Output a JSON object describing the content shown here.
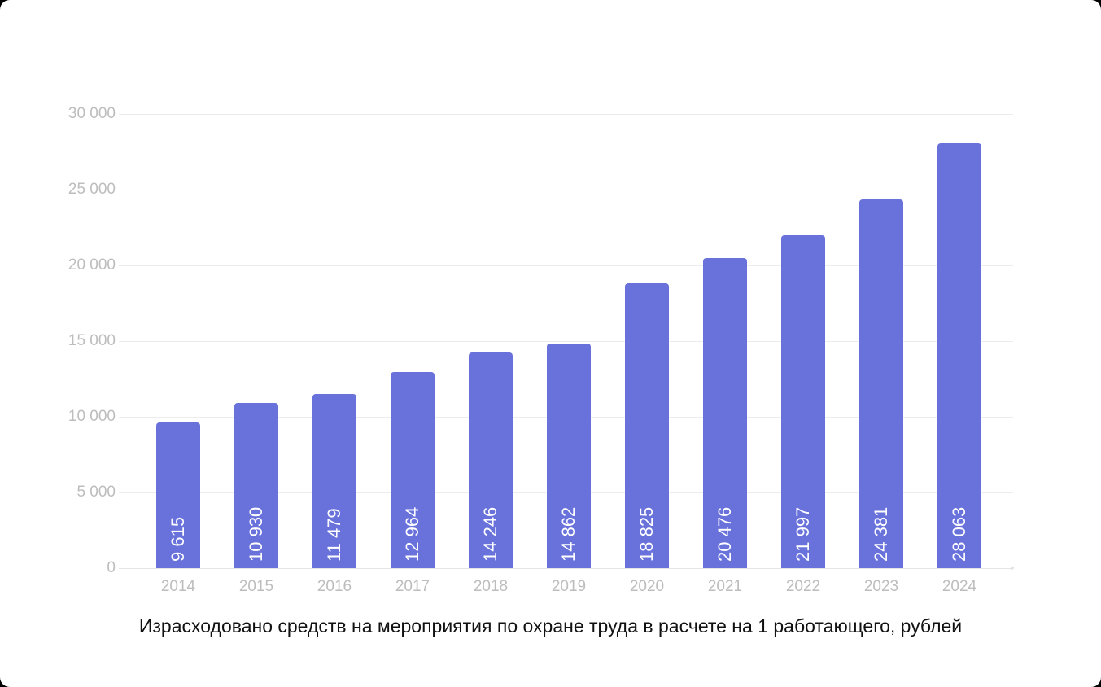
{
  "chart_data": {
    "type": "bar",
    "title": "Израсходовано средств на мероприятия по охране труда в расчете на 1 работающего, рублей",
    "xlabel": "",
    "ylabel": "",
    "categories": [
      "2014",
      "2015",
      "2016",
      "2017",
      "2018",
      "2019",
      "2020",
      "2021",
      "2022",
      "2023",
      "2024"
    ],
    "values": [
      9615,
      10930,
      11479,
      12964,
      14246,
      14862,
      18825,
      20476,
      21997,
      24381,
      28063
    ],
    "value_labels": [
      "9 615",
      "10 930",
      "11 479",
      "12 964",
      "14 246",
      "14 862",
      "18 825",
      "20 476",
      "21 997",
      "24 381",
      "28 063"
    ],
    "ylim": [
      0,
      30000
    ],
    "yticks": [
      0,
      5000,
      10000,
      15000,
      20000,
      25000,
      30000
    ],
    "ytick_labels": [
      "0",
      "5 000",
      "10 000",
      "15 000",
      "20 000",
      "25 000",
      "30 000"
    ],
    "grid": true,
    "legend": "none",
    "bar_color": "#6972db",
    "label_color": "#ffffff",
    "axis_text_color": "#bdbdbd"
  },
  "caption": "Израсходовано средств на мероприятия по охране труда в расчете на 1 работающего, рублей"
}
